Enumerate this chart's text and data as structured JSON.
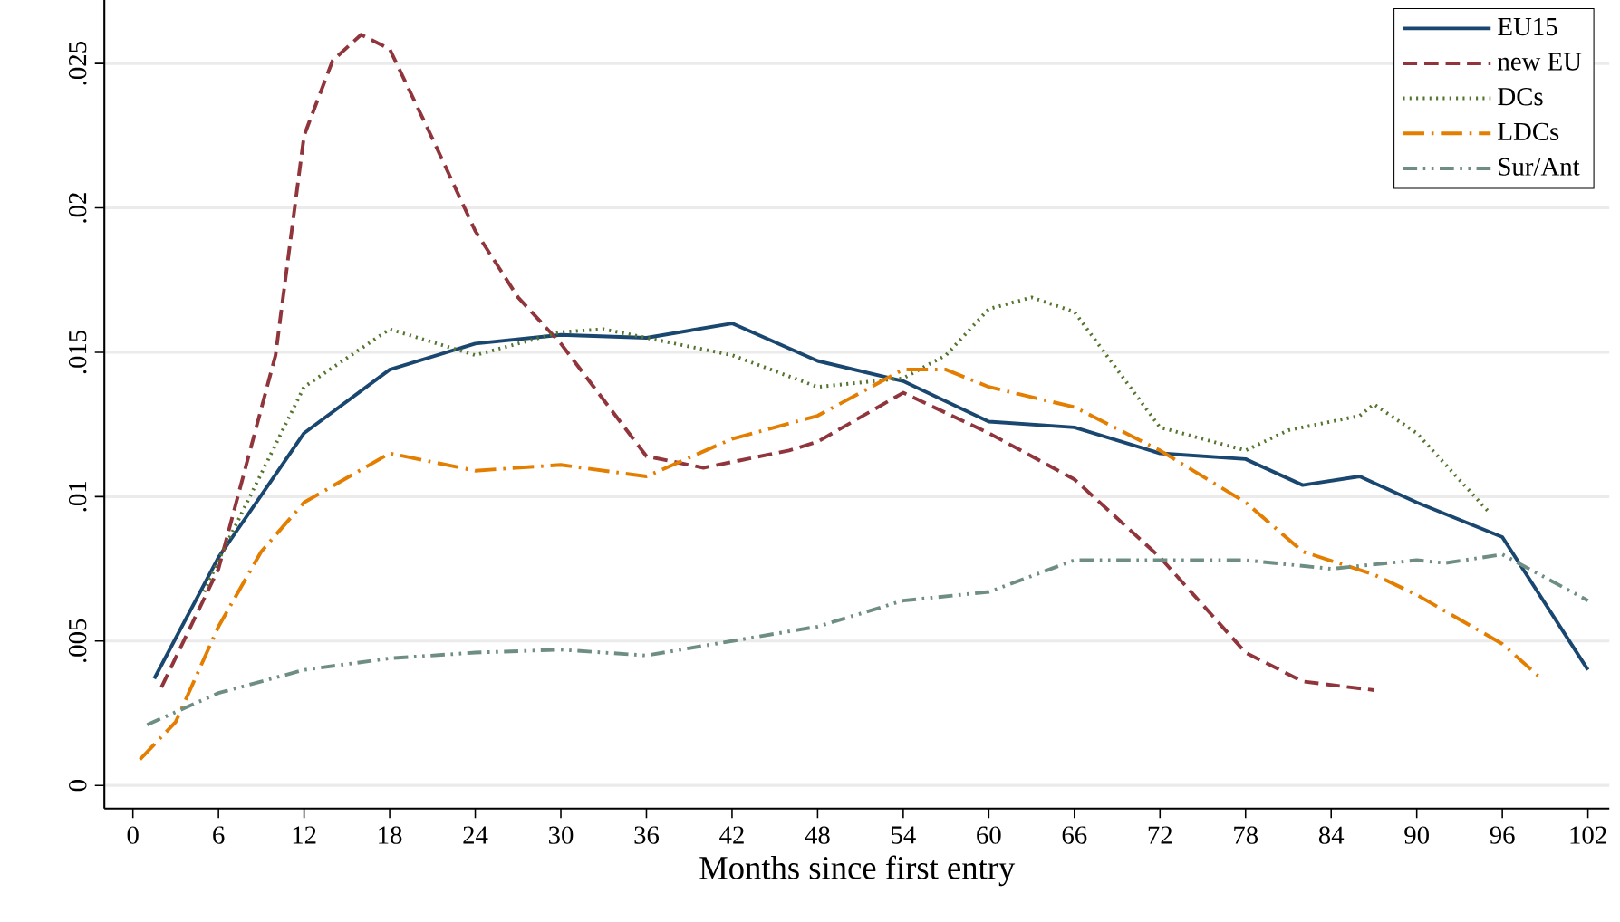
{
  "chart_data": {
    "type": "line",
    "xlabel": "Months since first entry",
    "xlim": [
      -2,
      103.5
    ],
    "ylim": [
      -0.0008,
      0.0272
    ],
    "xticks": [
      0,
      6,
      12,
      18,
      24,
      30,
      36,
      42,
      48,
      54,
      60,
      66,
      72,
      78,
      84,
      90,
      96,
      102
    ],
    "yticks": [
      0,
      {
        "value": 0.005,
        "label": ".005"
      },
      {
        "value": 0.01,
        "label": ".01"
      },
      {
        "value": 0.015,
        "label": ".015"
      },
      {
        "value": 0.02,
        "label": ".02"
      },
      {
        "value": 0.025,
        "label": ".025"
      }
    ],
    "grid": "y",
    "legend": "top right",
    "marker": "none",
    "series": [
      {
        "name": "EU15",
        "color": "#1a476f",
        "line_style": "solid",
        "x": [
          1.5,
          6,
          12,
          18,
          24,
          30,
          36,
          42,
          48,
          54,
          60,
          66,
          72,
          78,
          82,
          86,
          90,
          96,
          102
        ],
        "values": [
          0.0037,
          0.0079,
          0.0122,
          0.0144,
          0.0153,
          0.0156,
          0.0155,
          0.016,
          0.0147,
          0.014,
          0.0126,
          0.0124,
          0.0115,
          0.0113,
          0.0104,
          0.0107,
          0.0098,
          0.0086,
          0.004
        ]
      },
      {
        "name": "new EU",
        "color": "#90353b",
        "line_style": "dashed",
        "x": [
          2,
          6,
          10,
          12,
          14,
          16,
          18,
          21,
          24,
          27,
          30,
          36,
          40,
          46,
          48,
          54,
          60,
          66,
          72,
          78,
          82,
          87
        ],
        "values": [
          0.0034,
          0.0075,
          0.0149,
          0.0225,
          0.0251,
          0.026,
          0.0255,
          0.0224,
          0.0192,
          0.0169,
          0.0153,
          0.0114,
          0.011,
          0.0116,
          0.0119,
          0.0136,
          0.0122,
          0.0106,
          0.0079,
          0.0046,
          0.0036,
          0.0033
        ]
      },
      {
        "name": "DCs",
        "color": "#55752f",
        "line_style": "dotted",
        "x": [
          5,
          6,
          12,
          18,
          24,
          30,
          33,
          36,
          42,
          48,
          54,
          57,
          60,
          63,
          66,
          72,
          78,
          81,
          86,
          87,
          90,
          95
        ],
        "values": [
          0.0067,
          0.0078,
          0.0138,
          0.0158,
          0.0149,
          0.0157,
          0.0158,
          0.0155,
          0.0149,
          0.0138,
          0.0141,
          0.0149,
          0.0165,
          0.0169,
          0.0164,
          0.0124,
          0.0116,
          0.0123,
          0.0128,
          0.0132,
          0.0122,
          0.0095
        ]
      },
      {
        "name": "LDCs",
        "color": "#e37e00",
        "line_style": "dashdot",
        "x": [
          0.5,
          3,
          6,
          9,
          12,
          18,
          24,
          30,
          36,
          42,
          48,
          54,
          57,
          60,
          66,
          72,
          78,
          82,
          87,
          90,
          96,
          98.5
        ],
        "values": [
          0.0009,
          0.0022,
          0.0055,
          0.0081,
          0.0098,
          0.0115,
          0.0109,
          0.0111,
          0.0107,
          0.012,
          0.0128,
          0.0144,
          0.0144,
          0.0138,
          0.0131,
          0.0116,
          0.0098,
          0.0081,
          0.0073,
          0.0066,
          0.0049,
          0.0038
        ]
      },
      {
        "name": "Sur/Ant",
        "color": "#6e8e84",
        "line_style": "dashdotdot",
        "x": [
          1,
          6,
          12,
          18,
          24,
          30,
          36,
          42,
          48,
          54,
          60,
          66,
          72,
          78,
          84,
          90,
          92,
          96,
          102
        ],
        "values": [
          0.0021,
          0.0032,
          0.004,
          0.0044,
          0.0046,
          0.0047,
          0.0045,
          0.005,
          0.0055,
          0.0064,
          0.0067,
          0.0078,
          0.0078,
          0.0078,
          0.0075,
          0.0078,
          0.0077,
          0.008,
          0.0064
        ]
      }
    ]
  }
}
